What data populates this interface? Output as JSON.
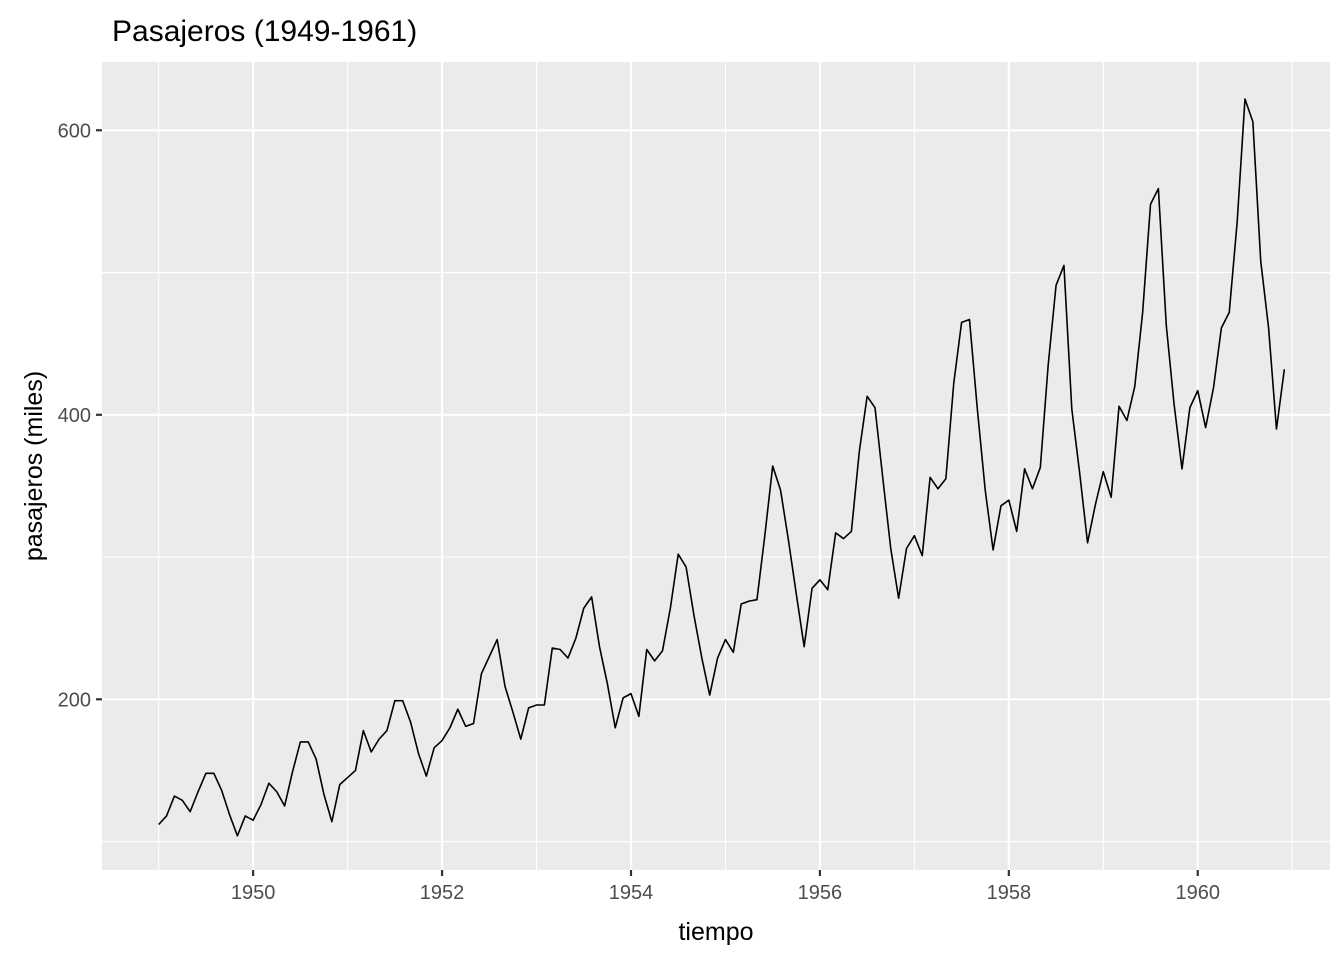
{
  "chart_data": {
    "type": "line",
    "title": "Pasajeros (1949-1961)",
    "xlabel": "tiempo",
    "ylabel": "pasajeros (miles)",
    "x_start": 1949.0,
    "x_step": 0.08333333,
    "values": [
      112,
      118,
      132,
      129,
      121,
      135,
      148,
      148,
      136,
      119,
      104,
      118,
      115,
      126,
      141,
      135,
      125,
      149,
      170,
      170,
      158,
      133,
      114,
      140,
      145,
      150,
      178,
      163,
      172,
      178,
      199,
      199,
      184,
      162,
      146,
      166,
      171,
      180,
      193,
      181,
      183,
      218,
      230,
      242,
      209,
      191,
      172,
      194,
      196,
      196,
      236,
      235,
      229,
      243,
      264,
      272,
      237,
      211,
      180,
      201,
      204,
      188,
      235,
      227,
      234,
      264,
      302,
      293,
      259,
      229,
      203,
      229,
      242,
      233,
      267,
      269,
      270,
      315,
      364,
      347,
      312,
      274,
      237,
      278,
      284,
      277,
      317,
      313,
      318,
      374,
      413,
      405,
      355,
      306,
      271,
      306,
      315,
      301,
      356,
      348,
      355,
      422,
      465,
      467,
      404,
      347,
      305,
      336,
      340,
      318,
      362,
      348,
      363,
      435,
      491,
      505,
      404,
      359,
      310,
      337,
      360,
      342,
      406,
      396,
      420,
      472,
      548,
      559,
      463,
      407,
      362,
      405,
      417,
      391,
      419,
      461,
      472,
      535,
      622,
      606,
      508,
      461,
      390,
      432
    ],
    "xlim": [
      1948.4,
      1961.4
    ],
    "ylim": [
      80,
      648
    ],
    "xticks": [
      1950,
      1952,
      1954,
      1956,
      1958,
      1960
    ],
    "xtick_labels": [
      "1950",
      "1952",
      "1954",
      "1956",
      "1958",
      "1960"
    ],
    "yticks": [
      200,
      400,
      600
    ],
    "ytick_labels": [
      "200",
      "400",
      "600"
    ],
    "grid": true,
    "legend": "none",
    "line_color": "#000000",
    "panel_color": "#ebebeb"
  }
}
